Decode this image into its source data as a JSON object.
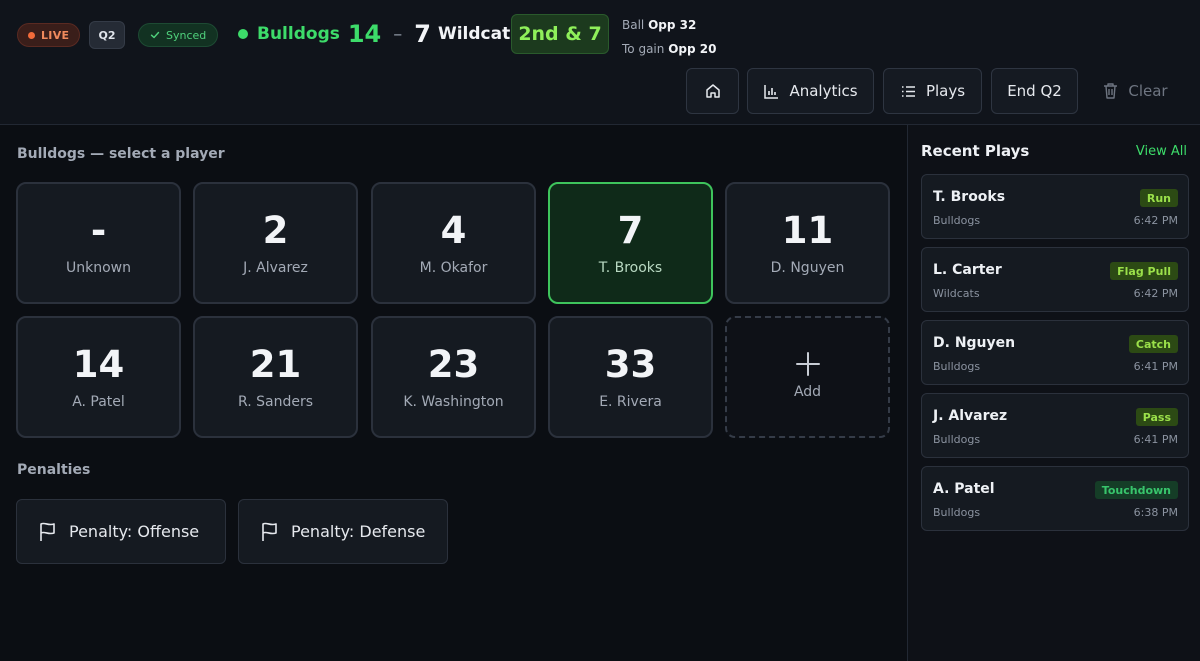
{
  "header": {
    "live_label": "LIVE",
    "quarter": "Q2",
    "sync_label": "Synced",
    "home_team": "Bulldogs",
    "home_score": "14",
    "score_separator": "–",
    "away_score": "7",
    "away_team": "Wildcats",
    "down_distance": "2nd & 7",
    "ball_label": "Ball",
    "ball_value": "Opp 32",
    "to_gain_label": "To gain",
    "to_gain_value": "Opp 20",
    "colors": {
      "home": "#3ddc6a",
      "down": "#8ff05a",
      "live": "#f26b3a"
    }
  },
  "toolbar": {
    "home_icon": "home-icon",
    "analytics_label": "Analytics",
    "plays_label": "Plays",
    "end_quarter_label": "End Q2",
    "clear_label": "Clear"
  },
  "roster": {
    "title": "Bulldogs — select a player",
    "selected_index": 3,
    "players": [
      {
        "number": "-",
        "name": "Unknown"
      },
      {
        "number": "2",
        "name": "J. Alvarez"
      },
      {
        "number": "4",
        "name": "M. Okafor"
      },
      {
        "number": "7",
        "name": "T. Brooks"
      },
      {
        "number": "11",
        "name": "D. Nguyen"
      },
      {
        "number": "14",
        "name": "A. Patel"
      },
      {
        "number": "21",
        "name": "R. Sanders"
      },
      {
        "number": "23",
        "name": "K. Washington"
      },
      {
        "number": "33",
        "name": "E. Rivera"
      }
    ],
    "add_label": "Add"
  },
  "penalties": {
    "title": "Penalties",
    "offense_label": "Penalty: Offense",
    "defense_label": "Penalty: Defense"
  },
  "recent_plays": {
    "title": "Recent Plays",
    "view_all_label": "View All",
    "items": [
      {
        "player": "T. Brooks",
        "team": "Bulldogs",
        "tag": "Run",
        "time": "6:42 PM"
      },
      {
        "player": "L. Carter",
        "team": "Wildcats",
        "tag": "Flag Pull",
        "time": "6:42 PM"
      },
      {
        "player": "D. Nguyen",
        "team": "Bulldogs",
        "tag": "Catch",
        "time": "6:41 PM"
      },
      {
        "player": "J. Alvarez",
        "team": "Bulldogs",
        "tag": "Pass",
        "time": "6:41 PM"
      },
      {
        "player": "A. Patel",
        "team": "Bulldogs",
        "tag": "Touchdown",
        "time": "6:38 PM"
      }
    ]
  }
}
